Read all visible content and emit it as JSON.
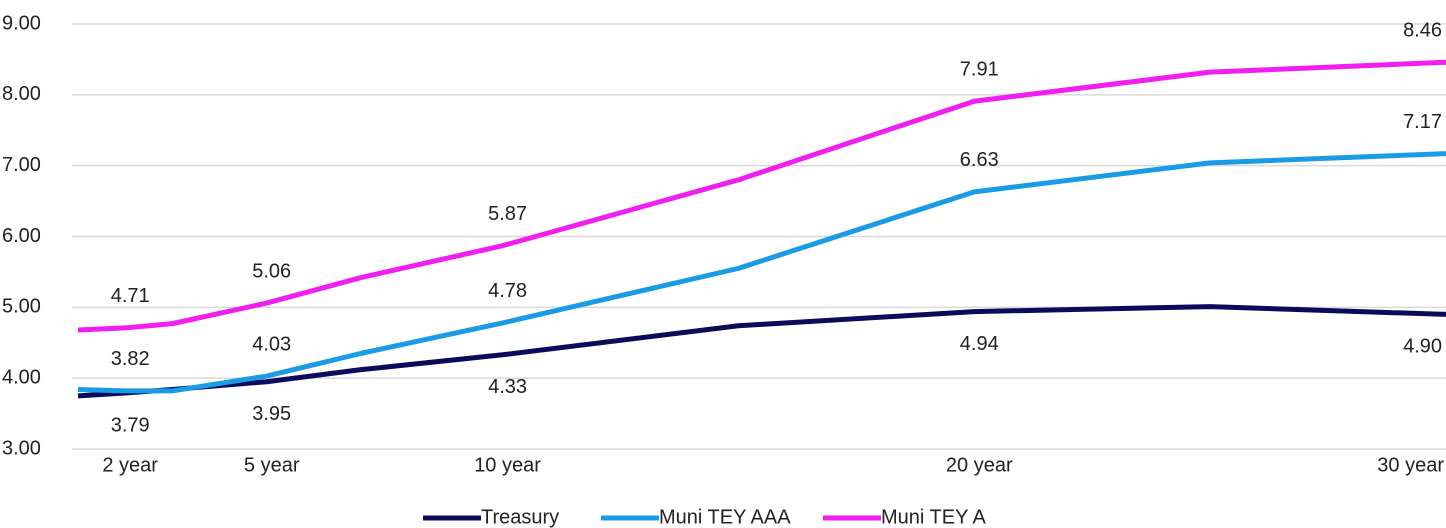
{
  "chart_data": {
    "type": "line",
    "x": [
      1,
      2,
      3,
      5,
      7,
      10,
      15,
      20,
      25,
      30
    ],
    "xlim": [
      1,
      30
    ],
    "xticks": [
      {
        "value": 2,
        "label": "2 year"
      },
      {
        "value": 5,
        "label": "5 year"
      },
      {
        "value": 10,
        "label": "10 year"
      },
      {
        "value": 20,
        "label": "20 year"
      },
      {
        "value": 30,
        "label": "30 year"
      }
    ],
    "ylim": [
      3,
      9
    ],
    "yticks": [
      {
        "value": 3,
        "label": "3.00"
      },
      {
        "value": 4,
        "label": "4.00"
      },
      {
        "value": 5,
        "label": "5.00"
      },
      {
        "value": 6,
        "label": "6.00"
      },
      {
        "value": 7,
        "label": "7.00"
      },
      {
        "value": 8,
        "label": "8.00"
      },
      {
        "value": 9,
        "label": "9.00"
      }
    ],
    "grid": true,
    "legend": "bottom",
    "series": [
      {
        "name": "Treasury",
        "color": "#0b0b5e",
        "values": [
          3.75,
          3.79,
          3.84,
          3.95,
          4.12,
          4.33,
          4.74,
          4.94,
          5.01,
          4.9
        ],
        "value_labels": [
          null,
          "3.79",
          null,
          "3.95",
          null,
          "4.33",
          null,
          "4.94",
          null,
          "4.90"
        ]
      },
      {
        "name": "Muni TEY AAA",
        "color": "#1a9be6",
        "values": [
          3.84,
          3.82,
          3.82,
          4.03,
          4.35,
          4.78,
          5.55,
          6.63,
          7.04,
          7.17
        ],
        "value_labels": [
          null,
          "3.82",
          null,
          "4.03",
          null,
          "4.78",
          null,
          "6.63",
          null,
          "7.17"
        ]
      },
      {
        "name": "Muni TEY A",
        "color": "#f01ef0",
        "values": [
          4.68,
          4.71,
          4.77,
          5.06,
          5.42,
          5.87,
          6.8,
          7.91,
          8.32,
          8.46
        ],
        "value_labels": [
          null,
          "4.71",
          null,
          "5.06",
          null,
          "5.87",
          null,
          "7.91",
          null,
          "8.46"
        ]
      }
    ]
  }
}
